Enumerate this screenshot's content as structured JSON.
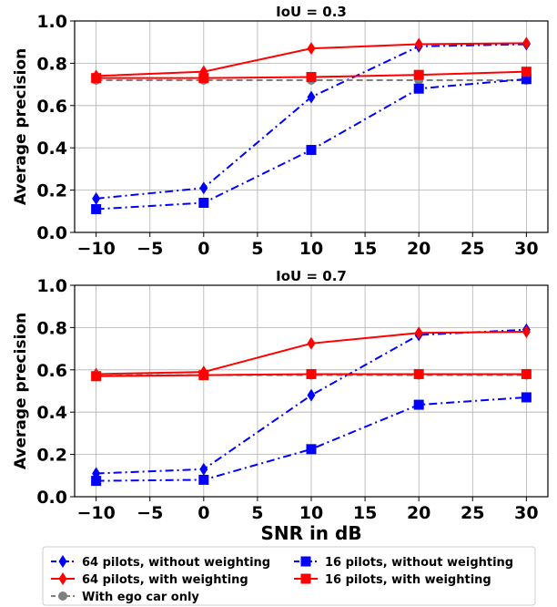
{
  "chart_data": [
    {
      "type": "line",
      "title": "IoU = 0.3",
      "xlabel": "",
      "ylabel": "Average precision",
      "xlim": [
        -12,
        32
      ],
      "ylim": [
        0,
        1
      ],
      "grid": true,
      "x": [
        -10,
        0,
        10,
        20,
        30
      ],
      "xticks": [
        "−10",
        "−5",
        "0",
        "5",
        "10",
        "15",
        "20",
        "25",
        "30"
      ],
      "yticks": [
        "0.0",
        "0.2",
        "0.4",
        "0.6",
        "0.8",
        "1.0"
      ],
      "series": [
        {
          "name": "64 pilots, without weighting",
          "values": [
            0.16,
            0.21,
            0.64,
            0.88,
            0.89
          ],
          "color": "#0000ff"
        },
        {
          "name": "64 pilots, with weighting",
          "values": [
            0.74,
            0.76,
            0.87,
            0.89,
            0.895
          ],
          "color": "#ff0000"
        },
        {
          "name": "With ego car only",
          "values": [
            0.72,
            0.72,
            0.72,
            0.72,
            0.72
          ],
          "color": "#808080"
        },
        {
          "name": "16 pilots, without weighting",
          "values": [
            0.11,
            0.14,
            0.39,
            0.68,
            0.725
          ],
          "color": "#0000ff"
        },
        {
          "name": "16 pilots, with weighting",
          "values": [
            0.73,
            0.73,
            0.735,
            0.745,
            0.76
          ],
          "color": "#ff0000"
        }
      ]
    },
    {
      "type": "line",
      "title": "IoU = 0.7",
      "xlabel": "SNR in dB",
      "ylabel": "Average precision",
      "xlim": [
        -12,
        32
      ],
      "ylim": [
        0,
        1
      ],
      "grid": true,
      "x": [
        -10,
        0,
        10,
        20,
        30
      ],
      "xticks": [
        "−10",
        "−5",
        "0",
        "5",
        "10",
        "15",
        "20",
        "25",
        "30"
      ],
      "yticks": [
        "0.0",
        "0.2",
        "0.4",
        "0.6",
        "0.8",
        "1.0"
      ],
      "series": [
        {
          "name": "64 pilots, without weighting",
          "values": [
            0.11,
            0.13,
            0.48,
            0.765,
            0.79
          ],
          "color": "#0000ff"
        },
        {
          "name": "64 pilots, with weighting",
          "values": [
            0.58,
            0.59,
            0.725,
            0.775,
            0.78
          ],
          "color": "#ff0000"
        },
        {
          "name": "With ego car only",
          "values": [
            0.575,
            0.575,
            0.575,
            0.575,
            0.575
          ],
          "color": "#808080"
        },
        {
          "name": "16 pilots, without weighting",
          "values": [
            0.075,
            0.08,
            0.225,
            0.435,
            0.47
          ],
          "color": "#0000ff"
        },
        {
          "name": "16 pilots, with weighting",
          "values": [
            0.57,
            0.575,
            0.58,
            0.58,
            0.58
          ],
          "color": "#ff0000"
        }
      ]
    }
  ],
  "legend": {
    "placement": "bottom",
    "entries": [
      {
        "label": "64 pilots, without weighting",
        "color": "#0000ff",
        "marker": "diamond",
        "dash": "dashdot"
      },
      {
        "label": "16 pilots, without weighting",
        "color": "#0000ff",
        "marker": "square",
        "dash": "dashdot"
      },
      {
        "label": "64 pilots, with weighting",
        "color": "#ff0000",
        "marker": "diamond",
        "dash": "solid"
      },
      {
        "label": "16 pilots, with weighting",
        "color": "#ff0000",
        "marker": "square",
        "dash": "solid"
      },
      {
        "label": "With ego car only",
        "color": "#808080",
        "marker": "circle",
        "dash": "dashed"
      }
    ]
  }
}
